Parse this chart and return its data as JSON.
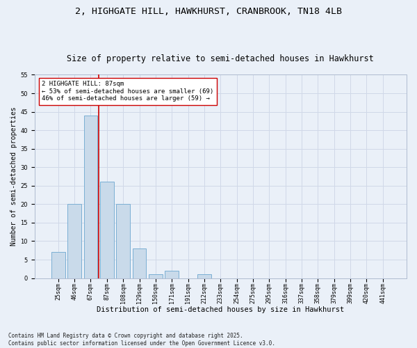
{
  "title1": "2, HIGHGATE HILL, HAWKHURST, CRANBROOK, TN18 4LB",
  "title2": "Size of property relative to semi-detached houses in Hawkhurst",
  "xlabel": "Distribution of semi-detached houses by size in Hawkhurst",
  "ylabel": "Number of semi-detached properties",
  "bar_labels": [
    "25sqm",
    "46sqm",
    "67sqm",
    "87sqm",
    "108sqm",
    "129sqm",
    "150sqm",
    "171sqm",
    "191sqm",
    "212sqm",
    "233sqm",
    "254sqm",
    "275sqm",
    "295sqm",
    "316sqm",
    "337sqm",
    "358sqm",
    "379sqm",
    "399sqm",
    "420sqm",
    "441sqm"
  ],
  "bar_values": [
    7,
    20,
    44,
    26,
    20,
    8,
    1,
    2,
    0,
    1,
    0,
    0,
    0,
    0,
    0,
    0,
    0,
    0,
    0,
    0,
    0
  ],
  "bar_color": "#c9daea",
  "bar_edge_color": "#7bafd4",
  "annotation_text_line1": "2 HIGHGATE HILL: 87sqm",
  "annotation_text_line2": "← 53% of semi-detached houses are smaller (69)",
  "annotation_text_line3": "46% of semi-detached houses are larger (59) →",
  "annotation_box_color": "#ffffff",
  "annotation_box_edge": "#cc0000",
  "redline_color": "#cc0000",
  "ylim": [
    0,
    55
  ],
  "yticks": [
    0,
    5,
    10,
    15,
    20,
    25,
    30,
    35,
    40,
    45,
    50,
    55
  ],
  "grid_color": "#d0d8e8",
  "bg_color": "#eaf0f8",
  "fig_bg_color": "#eaf0f8",
  "footnote": "Contains HM Land Registry data © Crown copyright and database right 2025.\nContains public sector information licensed under the Open Government Licence v3.0.",
  "title1_fontsize": 9.5,
  "title2_fontsize": 8.5,
  "axis_label_fontsize": 7,
  "tick_fontsize": 6,
  "annotation_fontsize": 6.5,
  "footnote_fontsize": 5.5
}
